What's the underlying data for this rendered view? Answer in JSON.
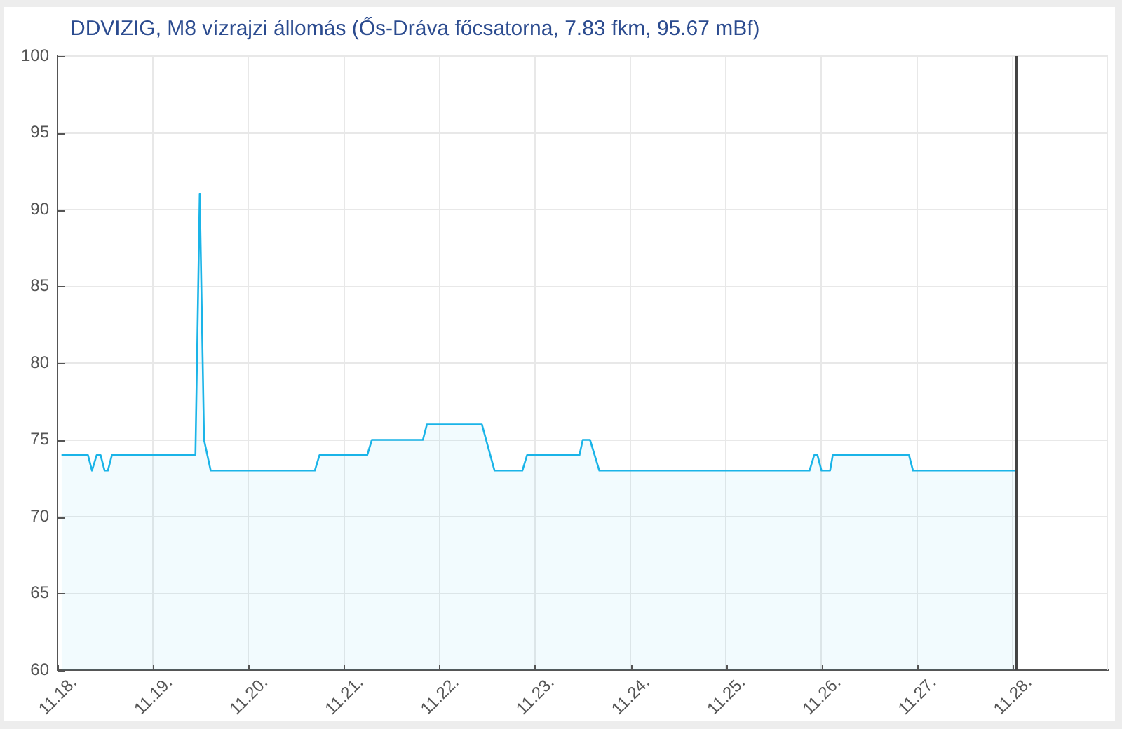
{
  "chart_data": {
    "type": "area",
    "title": "DDVIZIG, M8 vízrajzi állomás (Ős-Dráva főcsatorna, 7.83 fkm, 95.67 mBf)",
    "x": [
      "--11-18T01:00",
      "--11-18T07:40",
      "--11-18T08:40",
      "--11-18T09:50",
      "--11-18T10:50",
      "--11-18T11:50",
      "--11-18T12:40",
      "--11-18T13:40",
      "--11-19T10:40",
      "--11-19T11:45",
      "--11-19T12:50",
      "--11-19T14:30",
      "--11-20T16:40",
      "--11-20T17:50",
      "--11-21T05:50",
      "--11-21T07:00",
      "--11-21T19:50",
      "--11-21T20:50",
      "--11-22T10:40",
      "--11-22T13:50",
      "--11-22T20:50",
      "--11-22T22:00",
      "--11-23T11:10",
      "--11-23T12:00",
      "--11-23T13:50",
      "--11-23T16:10",
      "--11-25T21:00",
      "--11-25T22:10",
      "--11-25T23:00",
      "--11-26T00:00",
      "--11-26T02:10",
      "--11-26T02:50",
      "--11-26T22:00",
      "--11-26T23:00",
      "--11-28T01:00"
    ],
    "values": [
      74,
      74,
      73,
      74,
      74,
      73,
      73,
      74,
      74,
      91,
      75,
      73,
      73,
      74,
      74,
      75,
      75,
      76,
      76,
      73,
      73,
      74,
      74,
      75,
      75,
      73,
      73,
      74,
      74,
      73,
      73,
      74,
      74,
      73,
      73
    ],
    "color": "#1ab4e8",
    "xlim": [
      "--11-18",
      "--11-29"
    ],
    "xticks": [
      {
        "value": "--11-18",
        "label": "11.18."
      },
      {
        "value": "--11-19",
        "label": "11.19."
      },
      {
        "value": "--11-20",
        "label": "11.20."
      },
      {
        "value": "--11-21",
        "label": "11.21."
      },
      {
        "value": "--11-22",
        "label": "11.22."
      },
      {
        "value": "--11-23",
        "label": "11.23."
      },
      {
        "value": "--11-24",
        "label": "11.24."
      },
      {
        "value": "--11-25",
        "label": "11.25."
      },
      {
        "value": "--11-26",
        "label": "11.26."
      },
      {
        "value": "--11-27",
        "label": "11.27."
      },
      {
        "value": "--11-28",
        "label": "11.28."
      }
    ],
    "ylim": [
      60,
      100
    ],
    "yticks": [
      60,
      65,
      70,
      75,
      80,
      85,
      90,
      95,
      100
    ],
    "grid": true,
    "ref_lines": [
      {
        "axis": "x",
        "value": "--11-28T01:00",
        "color": "#444444"
      }
    ]
  }
}
